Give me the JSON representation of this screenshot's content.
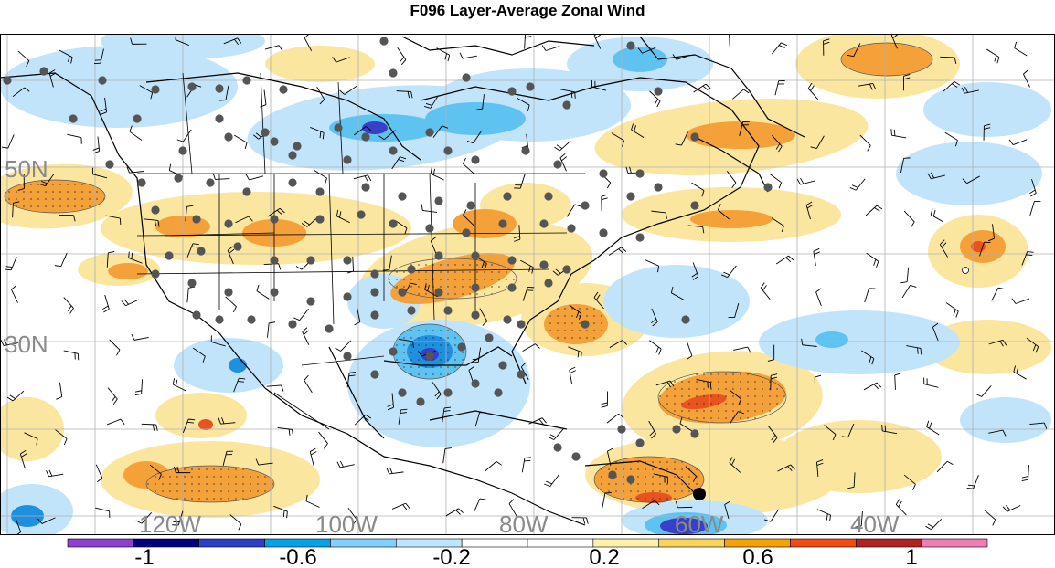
{
  "title": "F096 Layer-Average Zonal Wind",
  "lat_labels": [
    "50N",
    "30N"
  ],
  "lon_labels": [
    "120W",
    "100W",
    "80W",
    "60W",
    "40W"
  ],
  "colorbar": {
    "colors": [
      "#8f3fd0",
      "#000080",
      "#2c3fc8",
      "#00a2e8",
      "#7fd0ff",
      "#bfe6ff",
      "#ffffff",
      "#ffffff",
      "#fff2a8",
      "#f9d35a",
      "#f7a100",
      "#f24a12",
      "#b22222",
      "#f07cb6"
    ],
    "labels": [
      "-1",
      "-0.6",
      "-0.2",
      "0.2",
      "0.6",
      "1"
    ]
  },
  "palette": {
    "light_blue": "#c1e4fb",
    "medium_blue": "#5fc3f2",
    "strong_blue": "#1f8fe0",
    "dark_blue": "#3640c8",
    "light_yellow": "#fbe6a0",
    "orange": "#f4a13a",
    "red_orange": "#e8531e",
    "station_dot": "#555555"
  }
}
